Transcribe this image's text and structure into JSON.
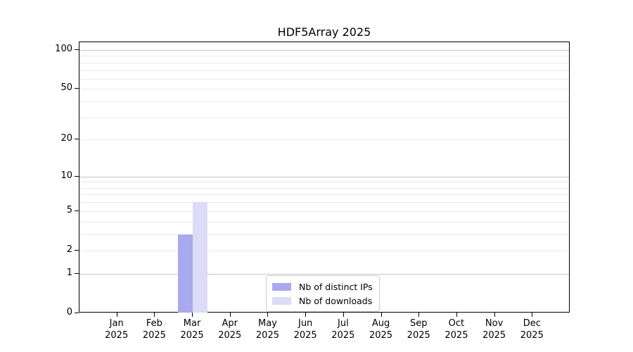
{
  "chart_data": {
    "type": "bar",
    "title": "HDF5Array 2025",
    "categories": [
      "Jan 2025",
      "Feb 2025",
      "Mar 2025",
      "Apr 2025",
      "May 2025",
      "Jun 2025",
      "Jul 2025",
      "Aug 2025",
      "Sep 2025",
      "Oct 2025",
      "Nov 2025",
      "Dec 2025"
    ],
    "x_tick_months": [
      "Jan",
      "Feb",
      "Mar",
      "Apr",
      "May",
      "Jun",
      "Jul",
      "Aug",
      "Sep",
      "Oct",
      "Nov",
      "Dec"
    ],
    "x_tick_year": "2025",
    "series": [
      {
        "name": "Nb of distinct IPs",
        "color": "#a9a9f0",
        "values": [
          0,
          0,
          3,
          0,
          0,
          0,
          0,
          0,
          0,
          0,
          0,
          0
        ]
      },
      {
        "name": "Nb of downloads",
        "color": "#dcdcf8",
        "values": [
          0,
          0,
          6,
          0,
          0,
          0,
          0,
          0,
          0,
          0,
          0,
          0
        ]
      }
    ],
    "y_axis": {
      "scale": "log1p",
      "tick_values": [
        0,
        1,
        2,
        5,
        10,
        20,
        50,
        100
      ],
      "gridline_values_major": [
        1,
        10,
        100
      ],
      "gridline_values_minor": [
        2,
        3,
        4,
        5,
        6,
        7,
        8,
        9,
        20,
        30,
        40,
        50,
        60,
        70,
        80,
        90
      ],
      "range_max": 115
    },
    "legend": {
      "position": "lower-center"
    },
    "grid": true
  }
}
